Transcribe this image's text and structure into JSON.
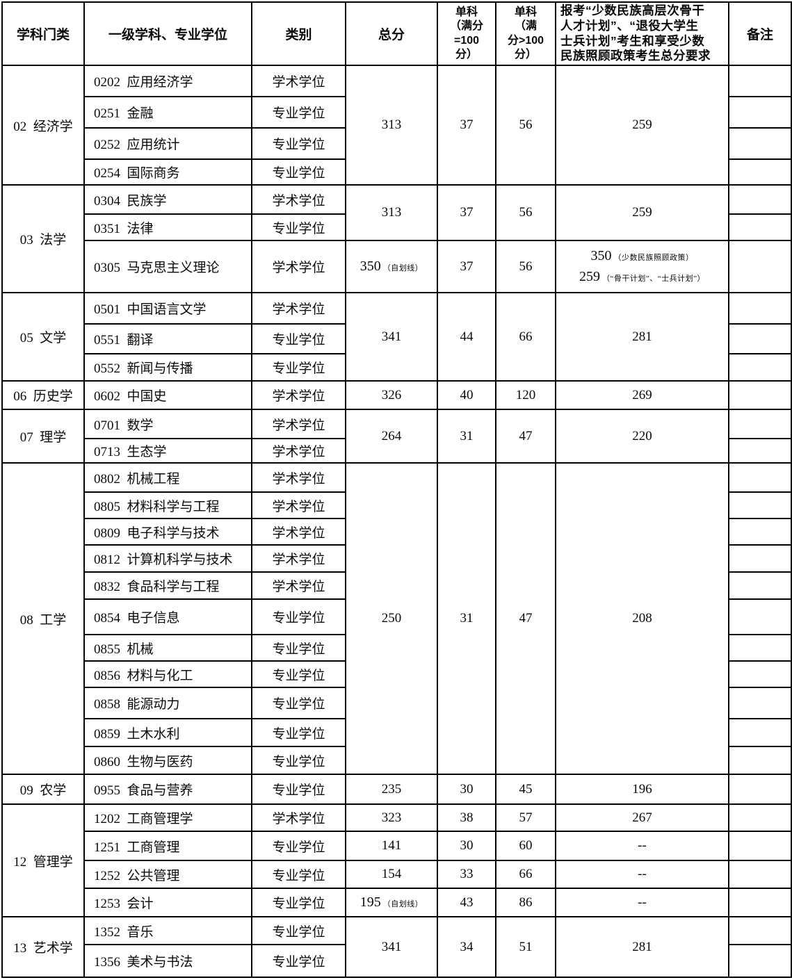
{
  "colors": {
    "border": "#000000",
    "text": "#0a0a0a",
    "background": "#ffffff"
  },
  "table": {
    "header": [
      {
        "label": "学科门类"
      },
      {
        "label": "一级学科、专业学位"
      },
      {
        "label": "类别"
      },
      {
        "label": "总分"
      },
      {
        "label": "单科\n（满分\n=100\n分）"
      },
      {
        "label": "单科\n（满\n分>100\n分）"
      },
      {
        "label": "报考“少数民族高层次骨干\n人才计划”、“退役大学生\n士兵计划”考生和享受少数\n民族照顾政策考生总分要求"
      },
      {
        "label": "备注"
      }
    ],
    "rows": [
      {
        "cells": [
          {
            "col": "category",
            "text": "02  经济学",
            "rowspan": 4
          },
          {
            "col": "discipline",
            "text": "0202  应用经济学"
          },
          {
            "col": "type",
            "text": "学术学位"
          },
          {
            "col": "total",
            "text": "313",
            "rowspan": 4
          },
          {
            "col": "sub100",
            "text": "37",
            "rowspan": 4
          },
          {
            "col": "subOver100",
            "text": "56",
            "rowspan": 4
          },
          {
            "col": "policy",
            "text": "259",
            "rowspan": 4
          },
          {
            "col": "remark",
            "text": ""
          }
        ]
      },
      {
        "cells": [
          {
            "col": "discipline",
            "text": "0251  金融"
          },
          {
            "col": "type",
            "text": "专业学位"
          },
          {
            "col": "remark",
            "text": ""
          }
        ]
      },
      {
        "cells": [
          {
            "col": "discipline",
            "text": "0252  应用统计"
          },
          {
            "col": "type",
            "text": "专业学位"
          },
          {
            "col": "remark",
            "text": ""
          }
        ]
      },
      {
        "cells": [
          {
            "col": "discipline",
            "text": "0254  国际商务"
          },
          {
            "col": "type",
            "text": "专业学位"
          },
          {
            "col": "remark",
            "text": ""
          }
        ]
      },
      {
        "cells": [
          {
            "col": "category",
            "text": "03  法学",
            "rowspan": 3
          },
          {
            "col": "discipline",
            "text": "0304  民族学"
          },
          {
            "col": "type",
            "text": "学术学位"
          },
          {
            "col": "total",
            "text": "313",
            "rowspan": 2
          },
          {
            "col": "sub100",
            "text": "37",
            "rowspan": 2
          },
          {
            "col": "subOver100",
            "text": "56",
            "rowspan": 2
          },
          {
            "col": "policy",
            "text": "259",
            "rowspan": 2
          },
          {
            "col": "remark",
            "text": ""
          }
        ]
      },
      {
        "cells": [
          {
            "col": "discipline",
            "text": "0351  法律"
          },
          {
            "col": "type",
            "text": "专业学位"
          },
          {
            "col": "remark",
            "text": ""
          }
        ]
      },
      {
        "cells": [
          {
            "col": "discipline",
            "text": "0305  马克思主义理论"
          },
          {
            "col": "type",
            "text": "学术学位"
          },
          {
            "col": "total",
            "num": "350",
            "note": "（自划线）"
          },
          {
            "col": "sub100",
            "text": "37"
          },
          {
            "col": "subOver100",
            "text": "56"
          },
          {
            "col": "policy",
            "lines": [
              {
                "num": "350",
                "note": "（少数民族照顾政策）"
              },
              {
                "num": "259",
                "note": "（“骨干计划”、“士兵计划”）"
              }
            ]
          },
          {
            "col": "remark",
            "text": ""
          }
        ]
      },
      {
        "cells": [
          {
            "col": "category",
            "text": "05  文学",
            "rowspan": 3
          },
          {
            "col": "discipline",
            "text": "0501  中国语言文学"
          },
          {
            "col": "type",
            "text": "学术学位"
          },
          {
            "col": "total",
            "text": "341",
            "rowspan": 3
          },
          {
            "col": "sub100",
            "text": "44",
            "rowspan": 3
          },
          {
            "col": "subOver100",
            "text": "66",
            "rowspan": 3
          },
          {
            "col": "policy",
            "text": "281",
            "rowspan": 3
          },
          {
            "col": "remark",
            "text": ""
          }
        ]
      },
      {
        "cells": [
          {
            "col": "discipline",
            "text": "0551  翻译"
          },
          {
            "col": "type",
            "text": "专业学位"
          },
          {
            "col": "remark",
            "text": ""
          }
        ]
      },
      {
        "cells": [
          {
            "col": "discipline",
            "text": "0552  新闻与传播"
          },
          {
            "col": "type",
            "text": "专业学位"
          },
          {
            "col": "remark",
            "text": ""
          }
        ]
      },
      {
        "cells": [
          {
            "col": "category",
            "text": "06  历史学"
          },
          {
            "col": "discipline",
            "text": "0602  中国史"
          },
          {
            "col": "type",
            "text": "学术学位"
          },
          {
            "col": "total",
            "text": "326"
          },
          {
            "col": "sub100",
            "text": "40"
          },
          {
            "col": "subOver100",
            "text": "120"
          },
          {
            "col": "policy",
            "text": "269"
          },
          {
            "col": "remark",
            "text": ""
          }
        ]
      },
      {
        "cells": [
          {
            "col": "category",
            "text": "07  理学",
            "rowspan": 2
          },
          {
            "col": "discipline",
            "text": "0701  数学"
          },
          {
            "col": "type",
            "text": "学术学位"
          },
          {
            "col": "total",
            "text": "264",
            "rowspan": 2
          },
          {
            "col": "sub100",
            "text": "31",
            "rowspan": 2
          },
          {
            "col": "subOver100",
            "text": "47",
            "rowspan": 2
          },
          {
            "col": "policy",
            "text": "220",
            "rowspan": 2
          },
          {
            "col": "remark",
            "text": ""
          }
        ]
      },
      {
        "cells": [
          {
            "col": "discipline",
            "text": "0713  生态学"
          },
          {
            "col": "type",
            "text": "学术学位"
          },
          {
            "col": "remark",
            "text": ""
          }
        ]
      },
      {
        "cells": [
          {
            "col": "category",
            "text": "08  工学",
            "rowspan": 11
          },
          {
            "col": "discipline",
            "text": "0802  机械工程"
          },
          {
            "col": "type",
            "text": "学术学位"
          },
          {
            "col": "total",
            "text": "250",
            "rowspan": 11
          },
          {
            "col": "sub100",
            "text": "31",
            "rowspan": 11
          },
          {
            "col": "subOver100",
            "text": "47",
            "rowspan": 11
          },
          {
            "col": "policy",
            "text": "208",
            "rowspan": 11
          },
          {
            "col": "remark",
            "text": ""
          }
        ]
      },
      {
        "cells": [
          {
            "col": "discipline",
            "text": "0805  材料科学与工程"
          },
          {
            "col": "type",
            "text": "学术学位"
          },
          {
            "col": "remark",
            "text": ""
          }
        ]
      },
      {
        "cells": [
          {
            "col": "discipline",
            "text": "0809  电子科学与技术"
          },
          {
            "col": "type",
            "text": "学术学位"
          },
          {
            "col": "remark",
            "text": ""
          }
        ]
      },
      {
        "cells": [
          {
            "col": "discipline",
            "text": "0812  计算机科学与技术"
          },
          {
            "col": "type",
            "text": "学术学位"
          },
          {
            "col": "remark",
            "text": ""
          }
        ]
      },
      {
        "cells": [
          {
            "col": "discipline",
            "text": "0832  食品科学与工程"
          },
          {
            "col": "type",
            "text": "学术学位"
          },
          {
            "col": "remark",
            "text": ""
          }
        ]
      },
      {
        "cells": [
          {
            "col": "discipline",
            "text": "0854  电子信息"
          },
          {
            "col": "type",
            "text": "专业学位"
          },
          {
            "col": "remark",
            "text": ""
          }
        ]
      },
      {
        "cells": [
          {
            "col": "discipline",
            "text": "0855  机械"
          },
          {
            "col": "type",
            "text": "专业学位"
          },
          {
            "col": "remark",
            "text": ""
          }
        ]
      },
      {
        "cells": [
          {
            "col": "discipline",
            "text": "0856  材料与化工"
          },
          {
            "col": "type",
            "text": "专业学位"
          },
          {
            "col": "remark",
            "text": ""
          }
        ]
      },
      {
        "cells": [
          {
            "col": "discipline",
            "text": "0858  能源动力"
          },
          {
            "col": "type",
            "text": "专业学位"
          },
          {
            "col": "remark",
            "text": ""
          }
        ]
      },
      {
        "cells": [
          {
            "col": "discipline",
            "text": "0859  土木水利"
          },
          {
            "col": "type",
            "text": "专业学位"
          },
          {
            "col": "remark",
            "text": ""
          }
        ]
      },
      {
        "cells": [
          {
            "col": "discipline",
            "text": "0860  生物与医药"
          },
          {
            "col": "type",
            "text": "专业学位"
          },
          {
            "col": "remark",
            "text": ""
          }
        ]
      },
      {
        "cells": [
          {
            "col": "category",
            "text": "09  农学"
          },
          {
            "col": "discipline",
            "text": "0955  食品与营养"
          },
          {
            "col": "type",
            "text": "专业学位"
          },
          {
            "col": "total",
            "text": "235"
          },
          {
            "col": "sub100",
            "text": "30"
          },
          {
            "col": "subOver100",
            "text": "45"
          },
          {
            "col": "policy",
            "text": "196"
          },
          {
            "col": "remark",
            "text": ""
          }
        ]
      },
      {
        "cells": [
          {
            "col": "category",
            "text": "12  管理学",
            "rowspan": 4
          },
          {
            "col": "discipline",
            "text": "1202  工商管理学"
          },
          {
            "col": "type",
            "text": "学术学位"
          },
          {
            "col": "total",
            "text": "323"
          },
          {
            "col": "sub100",
            "text": "38"
          },
          {
            "col": "subOver100",
            "text": "57"
          },
          {
            "col": "policy",
            "text": "267"
          },
          {
            "col": "remark",
            "text": ""
          }
        ]
      },
      {
        "cells": [
          {
            "col": "discipline",
            "text": "1251  工商管理"
          },
          {
            "col": "type",
            "text": "专业学位"
          },
          {
            "col": "total",
            "text": "141"
          },
          {
            "col": "sub100",
            "text": "30"
          },
          {
            "col": "subOver100",
            "text": "60"
          },
          {
            "col": "policy",
            "text": "--"
          },
          {
            "col": "remark",
            "text": ""
          }
        ]
      },
      {
        "cells": [
          {
            "col": "discipline",
            "text": "1252  公共管理"
          },
          {
            "col": "type",
            "text": "专业学位"
          },
          {
            "col": "total",
            "text": "154"
          },
          {
            "col": "sub100",
            "text": "33"
          },
          {
            "col": "subOver100",
            "text": "66"
          },
          {
            "col": "policy",
            "text": "--"
          },
          {
            "col": "remark",
            "text": ""
          }
        ]
      },
      {
        "cells": [
          {
            "col": "discipline",
            "text": "1253  会计"
          },
          {
            "col": "type",
            "text": "专业学位"
          },
          {
            "col": "total",
            "num": "195",
            "note": "（自划线）"
          },
          {
            "col": "sub100",
            "text": "43"
          },
          {
            "col": "subOver100",
            "text": "86"
          },
          {
            "col": "policy",
            "text": "--"
          },
          {
            "col": "remark",
            "text": ""
          }
        ]
      },
      {
        "cells": [
          {
            "col": "category",
            "text": "13  艺术学",
            "rowspan": 2
          },
          {
            "col": "discipline",
            "text": "1352  音乐"
          },
          {
            "col": "type",
            "text": "专业学位"
          },
          {
            "col": "total",
            "text": "341",
            "rowspan": 2
          },
          {
            "col": "sub100",
            "text": "34",
            "rowspan": 2
          },
          {
            "col": "subOver100",
            "text": "51",
            "rowspan": 2
          },
          {
            "col": "policy",
            "text": "281",
            "rowspan": 2
          },
          {
            "col": "remark",
            "text": ""
          }
        ]
      },
      {
        "cells": [
          {
            "col": "discipline",
            "text": "1356  美术与书法"
          },
          {
            "col": "type",
            "text": "专业学位"
          },
          {
            "col": "remark",
            "text": ""
          }
        ]
      }
    ]
  }
}
